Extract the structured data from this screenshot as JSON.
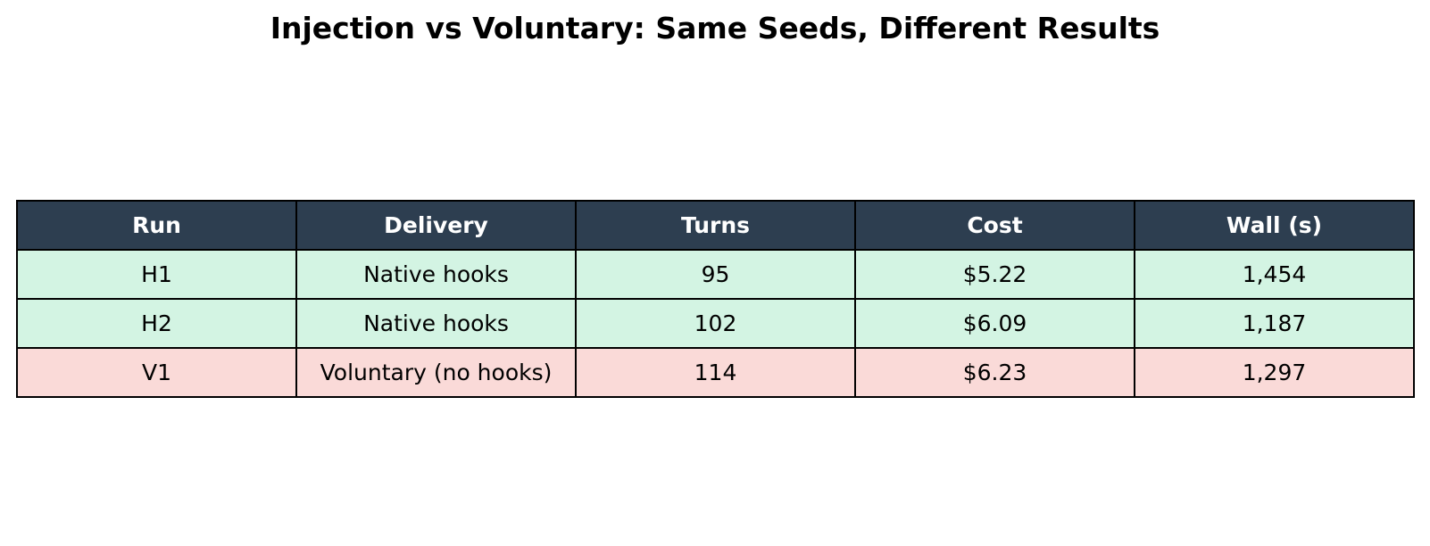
{
  "title": "Injection vs Voluntary: Same Seeds, Different Results",
  "colors": {
    "header_bg": "#2d3e50",
    "row_green": "#d3f4e3",
    "row_red": "#fadad8"
  },
  "chart_data": {
    "type": "table",
    "title": "Injection vs Voluntary: Same Seeds, Different Results",
    "columns": [
      "Run",
      "Delivery",
      "Turns",
      "Cost",
      "Wall (s)"
    ],
    "rows": [
      {
        "cells": [
          "H1",
          "Native hooks",
          "95",
          "$5.22",
          "1,454"
        ],
        "tint": "green"
      },
      {
        "cells": [
          "H2",
          "Native hooks",
          "102",
          "$6.09",
          "1,187"
        ],
        "tint": "green"
      },
      {
        "cells": [
          "V1",
          "Voluntary (no hooks)",
          "114",
          "$6.23",
          "1,297"
        ],
        "tint": "red"
      }
    ]
  }
}
